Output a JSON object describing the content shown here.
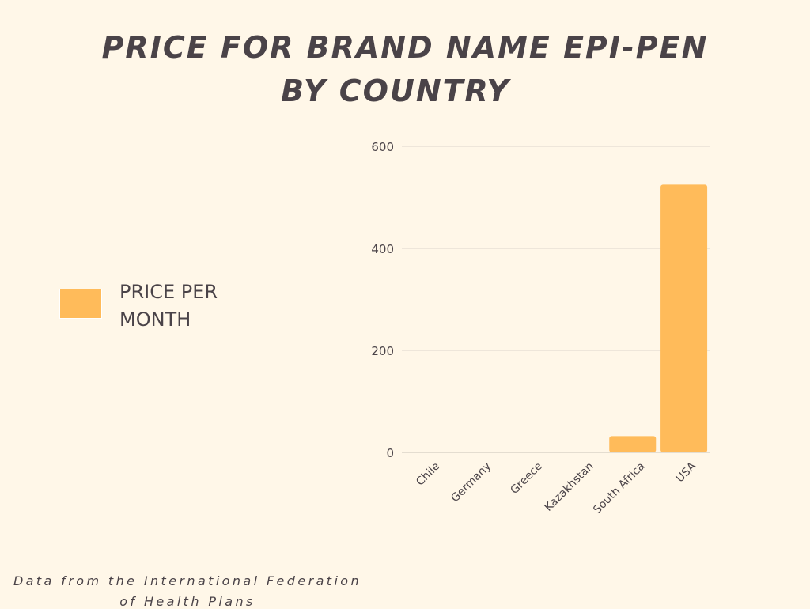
{
  "title_lines": [
    "PRICE FOR BRAND NAME EPI-PEN",
    "BY COUNTRY"
  ],
  "footer_lines": [
    "Data from the International Federation",
    "of Health Plans"
  ],
  "colors": {
    "bar": "#ffbb5a",
    "background": "#fff7e8",
    "text": "#4a4348",
    "grid": "#dcd6cc"
  },
  "chart_data": {
    "type": "bar",
    "title": "PRICE FOR BRAND NAME EPI-PEN BY COUNTRY",
    "categories": [
      "Chile",
      "Germany",
      "Greece",
      "Kazakhstan",
      "South Africa",
      "USA"
    ],
    "series": [
      {
        "name": "PRICE PER MONTH",
        "values": [
          0,
          0,
          0,
          0,
          32,
          525
        ]
      }
    ],
    "yticks": [
      0,
      200,
      400,
      600
    ],
    "ylim": [
      0,
      600
    ],
    "grid": true,
    "legend_position": "left"
  }
}
